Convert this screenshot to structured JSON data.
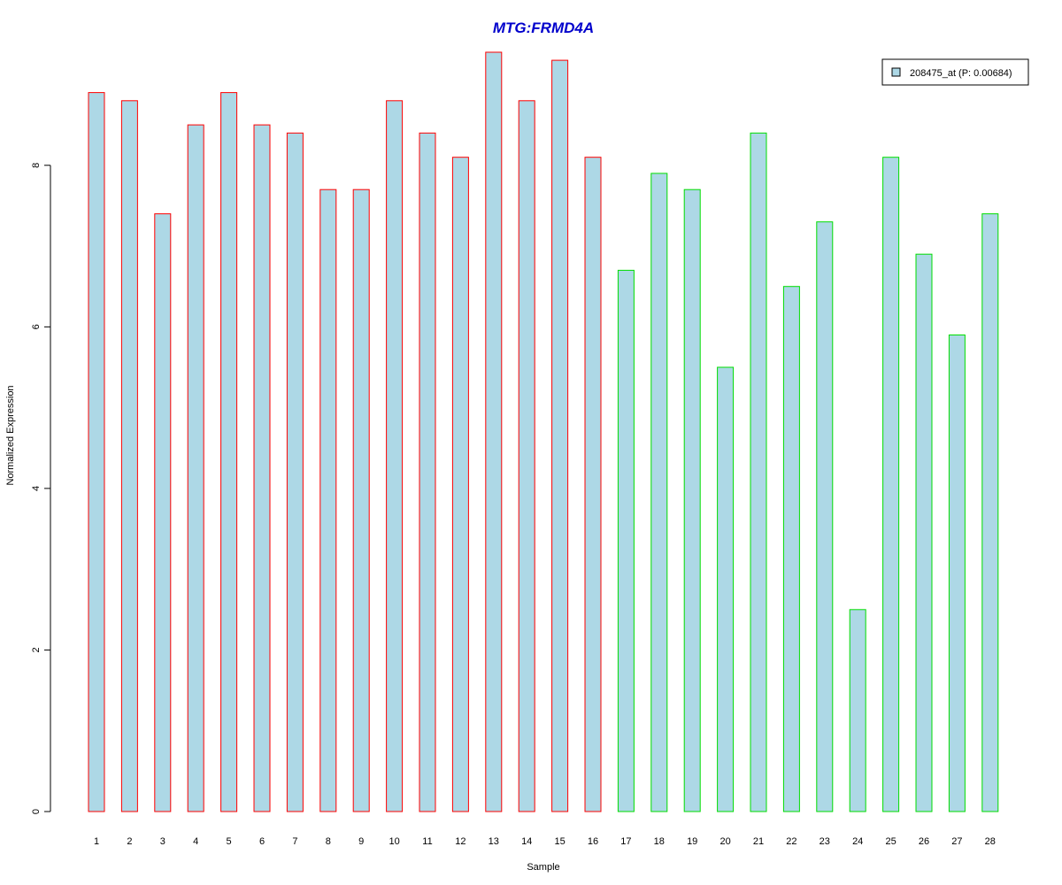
{
  "chart_data": {
    "type": "bar",
    "title": "MTG:FRMD4A",
    "xlabel": "Sample",
    "ylabel": "Normalized Expression",
    "categories": [
      "1",
      "2",
      "3",
      "4",
      "5",
      "6",
      "7",
      "8",
      "9",
      "10",
      "11",
      "12",
      "13",
      "14",
      "15",
      "16",
      "17",
      "18",
      "19",
      "20",
      "21",
      "22",
      "23",
      "24",
      "25",
      "26",
      "27",
      "28"
    ],
    "series": [
      {
        "name": "208475_at (P: 0.00684)",
        "values": [
          8.9,
          8.8,
          7.4,
          8.5,
          8.9,
          8.5,
          8.4,
          7.7,
          7.7,
          8.8,
          8.4,
          8.1,
          9.4,
          8.8,
          9.3,
          8.1,
          6.7,
          7.9,
          7.7,
          5.5,
          8.4,
          6.5,
          7.3,
          2.5,
          8.1,
          6.9,
          5.9,
          7.4
        ]
      }
    ],
    "group_border_colors": [
      "#ff0000",
      "#ff0000",
      "#ff0000",
      "#ff0000",
      "#ff0000",
      "#ff0000",
      "#ff0000",
      "#ff0000",
      "#ff0000",
      "#ff0000",
      "#ff0000",
      "#ff0000",
      "#ff0000",
      "#ff0000",
      "#ff0000",
      "#ff0000",
      "#00dd00",
      "#00dd00",
      "#00dd00",
      "#00dd00",
      "#00dd00",
      "#00dd00",
      "#00dd00",
      "#00dd00",
      "#00dd00",
      "#00dd00",
      "#00dd00",
      "#00dd00"
    ],
    "bar_fill_color": "#add8e6",
    "title_color": "#0000cc",
    "yticks": [
      0,
      2,
      4,
      6,
      8
    ],
    "ylim": [
      0,
      9.4
    ],
    "grid": false,
    "legend_position": "top-right"
  }
}
